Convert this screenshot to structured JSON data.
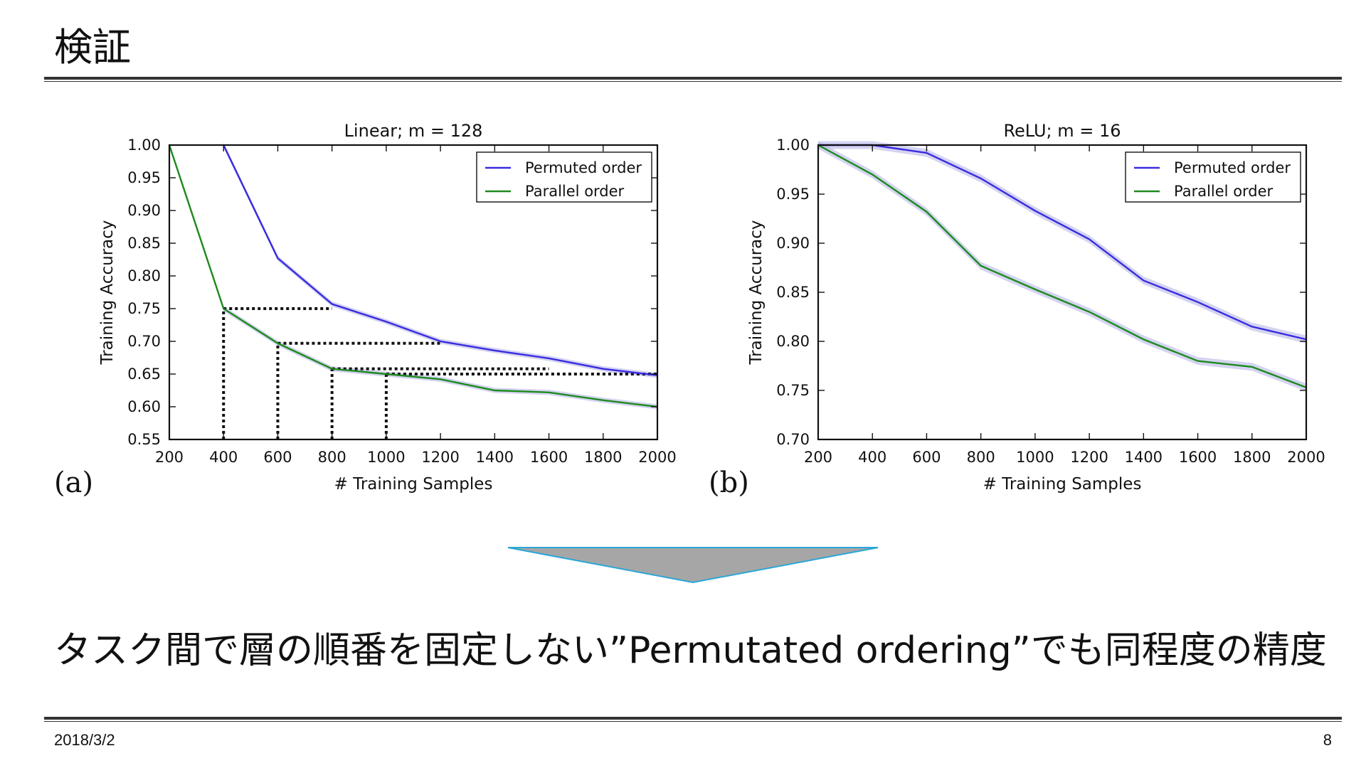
{
  "slide": {
    "title": "検証",
    "conclusion": "タスク間で層の順番を固定しない”Permutated ordering”でも同程度の精度",
    "date": "2018/3/2",
    "page_number": "8"
  },
  "colors": {
    "permuted": "#3a2be0",
    "parallel": "#1e8a1e",
    "band": "#b8b8e8",
    "arrow_fill": "#a6a6a6",
    "arrow_stroke": "#2aa6d8"
  },
  "chart_data": [
    {
      "type": "line",
      "panel_label": "(a)",
      "title": "Linear; m = 128",
      "xlabel": "# Training Samples",
      "ylabel": "Training Accuracy",
      "xlim": [
        200,
        2000
      ],
      "ylim": [
        0.55,
        1.0
      ],
      "xticks": [
        200,
        400,
        600,
        800,
        1000,
        1200,
        1400,
        1600,
        1800,
        2000
      ],
      "yticks": [
        0.55,
        0.6,
        0.65,
        0.7,
        0.75,
        0.8,
        0.85,
        0.9,
        0.95,
        1.0
      ],
      "ytick_labels": [
        "0.55",
        "0.60",
        "0.65",
        "0.70",
        "0.75",
        "0.80",
        "0.85",
        "0.90",
        "0.95",
        "1.00"
      ],
      "legend_position": "top-right",
      "series": [
        {
          "name": "Permuted order",
          "x": [
            400,
            600,
            800,
            1000,
            1200,
            1400,
            1600,
            1800,
            2000
          ],
          "y": [
            1.0,
            0.827,
            0.757,
            0.73,
            0.7,
            0.686,
            0.674,
            0.658,
            0.648
          ]
        },
        {
          "name": "Parallel order",
          "x": [
            200,
            400,
            600,
            800,
            1000,
            1200,
            1400,
            1600,
            1800,
            2000
          ],
          "y": [
            1.0,
            0.75,
            0.697,
            0.658,
            0.65,
            0.642,
            0.625,
            0.622,
            0.61,
            0.6
          ]
        }
      ],
      "reference_lines": [
        {
          "x": [
            400,
            400
          ],
          "y": [
            0.55,
            0.75
          ]
        },
        {
          "x": [
            400,
            800
          ],
          "y": [
            0.75,
            0.75
          ]
        },
        {
          "x": [
            600,
            600
          ],
          "y": [
            0.55,
            0.697
          ]
        },
        {
          "x": [
            600,
            1200
          ],
          "y": [
            0.697,
            0.697
          ]
        },
        {
          "x": [
            800,
            800
          ],
          "y": [
            0.55,
            0.658
          ]
        },
        {
          "x": [
            800,
            1600
          ],
          "y": [
            0.658,
            0.658
          ]
        },
        {
          "x": [
            1000,
            1000
          ],
          "y": [
            0.55,
            0.65
          ]
        },
        {
          "x": [
            1000,
            2000
          ],
          "y": [
            0.65,
            0.65
          ]
        }
      ]
    },
    {
      "type": "line",
      "panel_label": "(b)",
      "title": "ReLU; m = 16",
      "xlabel": "# Training Samples",
      "ylabel": "Training Accuracy",
      "xlim": [
        200,
        2000
      ],
      "ylim": [
        0.7,
        1.0
      ],
      "xticks": [
        200,
        400,
        600,
        800,
        1000,
        1200,
        1400,
        1600,
        1800,
        2000
      ],
      "yticks": [
        0.7,
        0.75,
        0.8,
        0.85,
        0.9,
        0.95,
        1.0
      ],
      "ytick_labels": [
        "0.70",
        "0.75",
        "0.80",
        "0.85",
        "0.90",
        "0.95",
        "1.00"
      ],
      "legend_position": "top-right",
      "series": [
        {
          "name": "Permuted order",
          "x": [
            200,
            400,
            600,
            800,
            1000,
            1200,
            1400,
            1600,
            1800,
            2000
          ],
          "y": [
            1.0,
            1.0,
            0.992,
            0.966,
            0.933,
            0.904,
            0.862,
            0.84,
            0.815,
            0.802
          ]
        },
        {
          "name": "Parallel order",
          "x": [
            200,
            400,
            600,
            800,
            1000,
            1200,
            1400,
            1600,
            1800,
            2000
          ],
          "y": [
            1.0,
            0.97,
            0.932,
            0.877,
            0.853,
            0.83,
            0.802,
            0.78,
            0.774,
            0.753
          ]
        }
      ],
      "reference_lines": []
    }
  ]
}
